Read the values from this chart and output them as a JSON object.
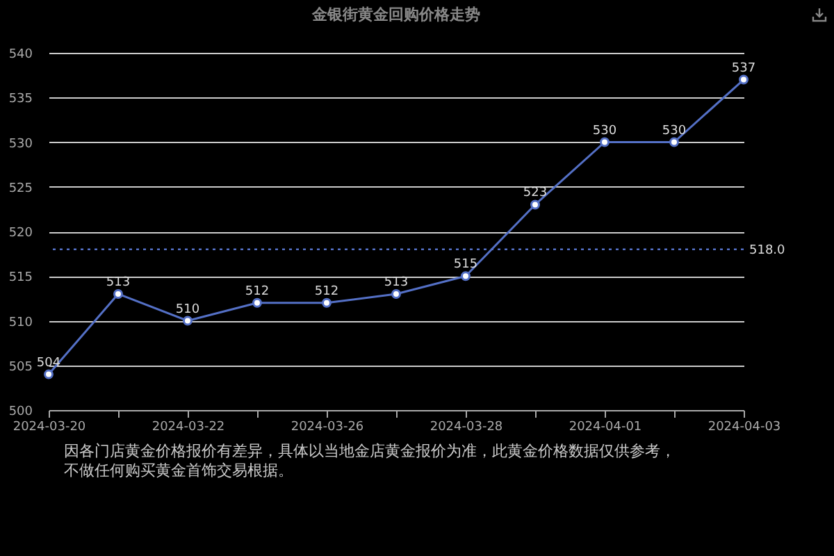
{
  "chart_data": {
    "type": "line",
    "title": "金银街黄金回购价格走势",
    "categories": [
      "2024-03-20",
      null,
      "2024-03-22",
      null,
      "2024-03-26",
      null,
      "2024-03-28",
      null,
      "2024-04-01",
      null,
      "2024-04-03"
    ],
    "series": [
      {
        "color": "#5470c6",
        "values": [
          504,
          513,
          510,
          512,
          512,
          513,
          515,
          523,
          530,
          530,
          537
        ]
      }
    ],
    "ylim": [
      500,
      540
    ],
    "yticks": [
      500,
      505,
      510,
      515,
      520,
      525,
      530,
      535,
      540
    ],
    "grid": "y",
    "marker": "circle",
    "data_labels": true,
    "ref_lines": [
      {
        "axis": "y",
        "value": 518.0,
        "label": "518.0",
        "color": "#5470c6",
        "line_style": "dotted"
      }
    ],
    "annotations": [
      "因各门店黄金价格报价有差异，具体以当地金店黄金报价为准，此黄金价格数据仅供参考，不做任何购买黄金首饰交易根据。"
    ]
  }
}
